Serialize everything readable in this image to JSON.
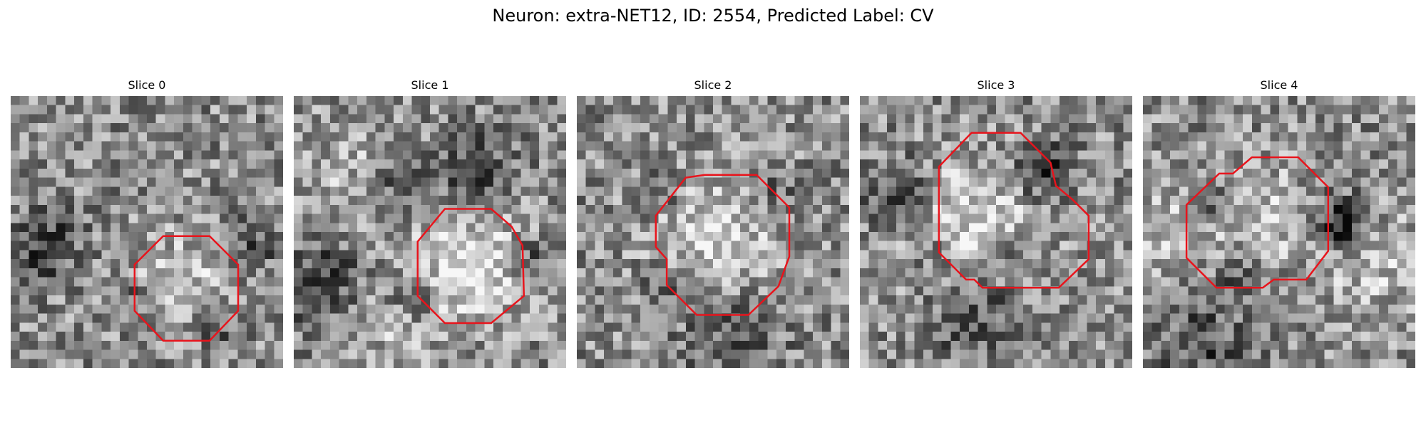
{
  "figure": {
    "title": "Neuron: extra-NET12, ID: 2554, Predicted Label: CV"
  },
  "contour_color": "#e8141c",
  "panels": [
    {
      "title": "Slice 0",
      "noise_seed": 101,
      "contour": [
        [
          0.56,
          0.515
        ],
        [
          0.73,
          0.515
        ],
        [
          0.835,
          0.62
        ],
        [
          0.835,
          0.79
        ],
        [
          0.73,
          0.9
        ],
        [
          0.56,
          0.9
        ],
        [
          0.455,
          0.79
        ],
        [
          0.455,
          0.62
        ]
      ],
      "bright_blobs": [
        [
          0.63,
          0.67,
          0.12,
          0.5
        ]
      ],
      "dark_blobs": [
        [
          0.13,
          0.55,
          0.09,
          0.5
        ],
        [
          0.88,
          0.55,
          0.07,
          0.4
        ],
        [
          0.43,
          0.74,
          0.05,
          0.35
        ],
        [
          0.75,
          0.84,
          0.05,
          0.4
        ]
      ]
    },
    {
      "title": "Slice 1",
      "noise_seed": 202,
      "contour": [
        [
          0.555,
          0.415
        ],
        [
          0.725,
          0.415
        ],
        [
          0.8,
          0.48
        ],
        [
          0.84,
          0.55
        ],
        [
          0.845,
          0.735
        ],
        [
          0.725,
          0.835
        ],
        [
          0.555,
          0.835
        ],
        [
          0.455,
          0.735
        ],
        [
          0.455,
          0.535
        ]
      ],
      "bright_blobs": [
        [
          0.64,
          0.6,
          0.17,
          0.75
        ],
        [
          0.22,
          0.28,
          0.16,
          0.3
        ],
        [
          0.3,
          0.86,
          0.12,
          0.3
        ]
      ],
      "dark_blobs": [
        [
          0.4,
          0.35,
          0.08,
          0.5
        ],
        [
          0.1,
          0.7,
          0.12,
          0.5
        ],
        [
          0.66,
          0.3,
          0.12,
          0.45
        ],
        [
          0.43,
          0.73,
          0.06,
          0.5
        ],
        [
          0.87,
          0.6,
          0.06,
          0.5
        ]
      ]
    },
    {
      "title": "Slice 2",
      "noise_seed": 303,
      "contour": [
        [
          0.4,
          0.3
        ],
        [
          0.47,
          0.29
        ],
        [
          0.66,
          0.29
        ],
        [
          0.78,
          0.41
        ],
        [
          0.78,
          0.59
        ],
        [
          0.74,
          0.7
        ],
        [
          0.63,
          0.805
        ],
        [
          0.44,
          0.805
        ],
        [
          0.33,
          0.695
        ],
        [
          0.33,
          0.6
        ],
        [
          0.29,
          0.555
        ],
        [
          0.29,
          0.44
        ]
      ],
      "bright_blobs": [
        [
          0.53,
          0.53,
          0.17,
          0.6
        ]
      ],
      "dark_blobs": [
        [
          0.3,
          0.35,
          0.05,
          0.45
        ],
        [
          0.56,
          0.86,
          0.14,
          0.35
        ],
        [
          0.73,
          0.33,
          0.06,
          0.4
        ],
        [
          0.3,
          0.7,
          0.05,
          0.4
        ]
      ]
    },
    {
      "title": "Slice 3",
      "noise_seed": 404,
      "contour": [
        [
          0.41,
          0.135
        ],
        [
          0.59,
          0.135
        ],
        [
          0.7,
          0.245
        ],
        [
          0.72,
          0.33
        ],
        [
          0.78,
          0.38
        ],
        [
          0.84,
          0.44
        ],
        [
          0.84,
          0.6
        ],
        [
          0.73,
          0.705
        ],
        [
          0.45,
          0.705
        ],
        [
          0.42,
          0.675
        ],
        [
          0.39,
          0.675
        ],
        [
          0.29,
          0.575
        ],
        [
          0.29,
          0.26
        ]
      ],
      "bright_blobs": [
        [
          0.41,
          0.48,
          0.17,
          0.7
        ]
      ],
      "dark_blobs": [
        [
          0.15,
          0.37,
          0.09,
          0.6
        ],
        [
          0.67,
          0.27,
          0.07,
          0.7
        ],
        [
          0.57,
          0.55,
          0.05,
          0.35
        ],
        [
          0.42,
          0.8,
          0.12,
          0.45
        ],
        [
          0.28,
          0.58,
          0.05,
          0.45
        ]
      ]
    },
    {
      "title": "Slice 4",
      "noise_seed": 505,
      "contour": [
        [
          0.33,
          0.285
        ],
        [
          0.4,
          0.225
        ],
        [
          0.57,
          0.225
        ],
        [
          0.68,
          0.335
        ],
        [
          0.68,
          0.57
        ],
        [
          0.6,
          0.675
        ],
        [
          0.48,
          0.675
        ],
        [
          0.44,
          0.705
        ],
        [
          0.27,
          0.705
        ],
        [
          0.16,
          0.595
        ],
        [
          0.16,
          0.4
        ],
        [
          0.28,
          0.285
        ]
      ],
      "bright_blobs": [
        [
          0.42,
          0.43,
          0.13,
          0.5
        ],
        [
          0.84,
          0.6,
          0.14,
          0.45
        ],
        [
          0.1,
          0.5,
          0.12,
          0.35
        ]
      ],
      "dark_blobs": [
        [
          0.27,
          0.4,
          0.05,
          0.4
        ],
        [
          0.72,
          0.44,
          0.06,
          0.6
        ],
        [
          0.76,
          0.5,
          0.07,
          0.5
        ],
        [
          0.35,
          0.65,
          0.06,
          0.35
        ],
        [
          0.22,
          0.92,
          0.12,
          0.4
        ]
      ]
    }
  ]
}
